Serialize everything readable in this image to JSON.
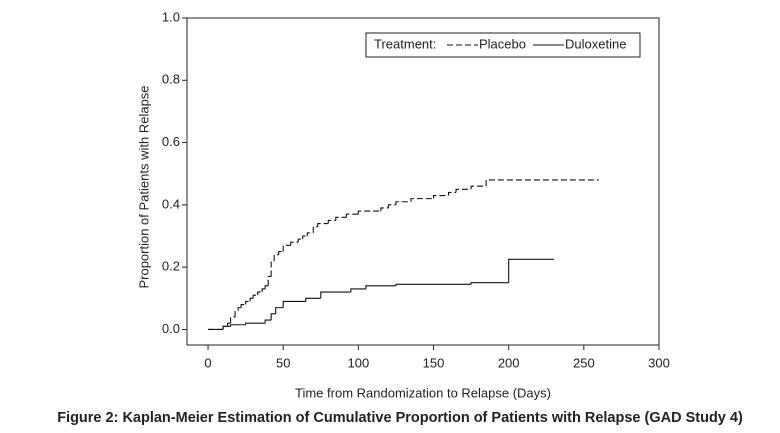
{
  "chart_data": {
    "type": "line",
    "step": true,
    "title": "Figure 2: Kaplan-Meier Estimation of Cumulative Proportion of Patients with Relapse (GAD Study 4)",
    "x_label": "Time from Randomization to Relapse (Days)",
    "y_label": "Proportion of Patients with Relapse",
    "legend_title": "Treatment:",
    "xlim": [
      -14,
      300
    ],
    "xticks": [
      0,
      50,
      100,
      150,
      200,
      250,
      300
    ],
    "ylim": [
      -0.05,
      1.0
    ],
    "yticks": [
      {
        "value": 0,
        "label": "0.0"
      },
      {
        "value": 0.2,
        "label": "0.2"
      },
      {
        "value": 0.4,
        "label": "0.4"
      },
      {
        "value": 0.6,
        "label": "0.6"
      },
      {
        "value": 0.8,
        "label": "0.8"
      },
      {
        "value": 1,
        "label": "1.0"
      }
    ],
    "series": [
      {
        "name": "Placebo",
        "color": "#111111",
        "dashed": true,
        "x": [
          0,
          8,
          10,
          13,
          15,
          18,
          20,
          22,
          25,
          28,
          30,
          33,
          36,
          38,
          40,
          42,
          44,
          47,
          50,
          55,
          60,
          63,
          66,
          70,
          73,
          80,
          85,
          92,
          100,
          115,
          120,
          125,
          135,
          150,
          160,
          165,
          175,
          185,
          260
        ],
        "values": [
          0,
          0,
          0.01,
          0.02,
          0.04,
          0.06,
          0.07,
          0.08,
          0.09,
          0.1,
          0.11,
          0.12,
          0.13,
          0.14,
          0.17,
          0.22,
          0.24,
          0.25,
          0.27,
          0.28,
          0.29,
          0.3,
          0.31,
          0.33,
          0.34,
          0.35,
          0.36,
          0.37,
          0.38,
          0.39,
          0.4,
          0.41,
          0.42,
          0.43,
          0.44,
          0.45,
          0.46,
          0.48,
          0.48
        ]
      },
      {
        "name": "Duloxetine",
        "color": "#111111",
        "dashed": false,
        "x": [
          0,
          8,
          10,
          15,
          25,
          38,
          42,
          45,
          50,
          65,
          75,
          95,
          105,
          125,
          175,
          200,
          230
        ],
        "values": [
          0,
          0,
          0.01,
          0.015,
          0.02,
          0.03,
          0.05,
          0.07,
          0.09,
          0.1,
          0.12,
          0.13,
          0.14,
          0.145,
          0.15,
          0.225,
          0.225
        ]
      }
    ]
  }
}
